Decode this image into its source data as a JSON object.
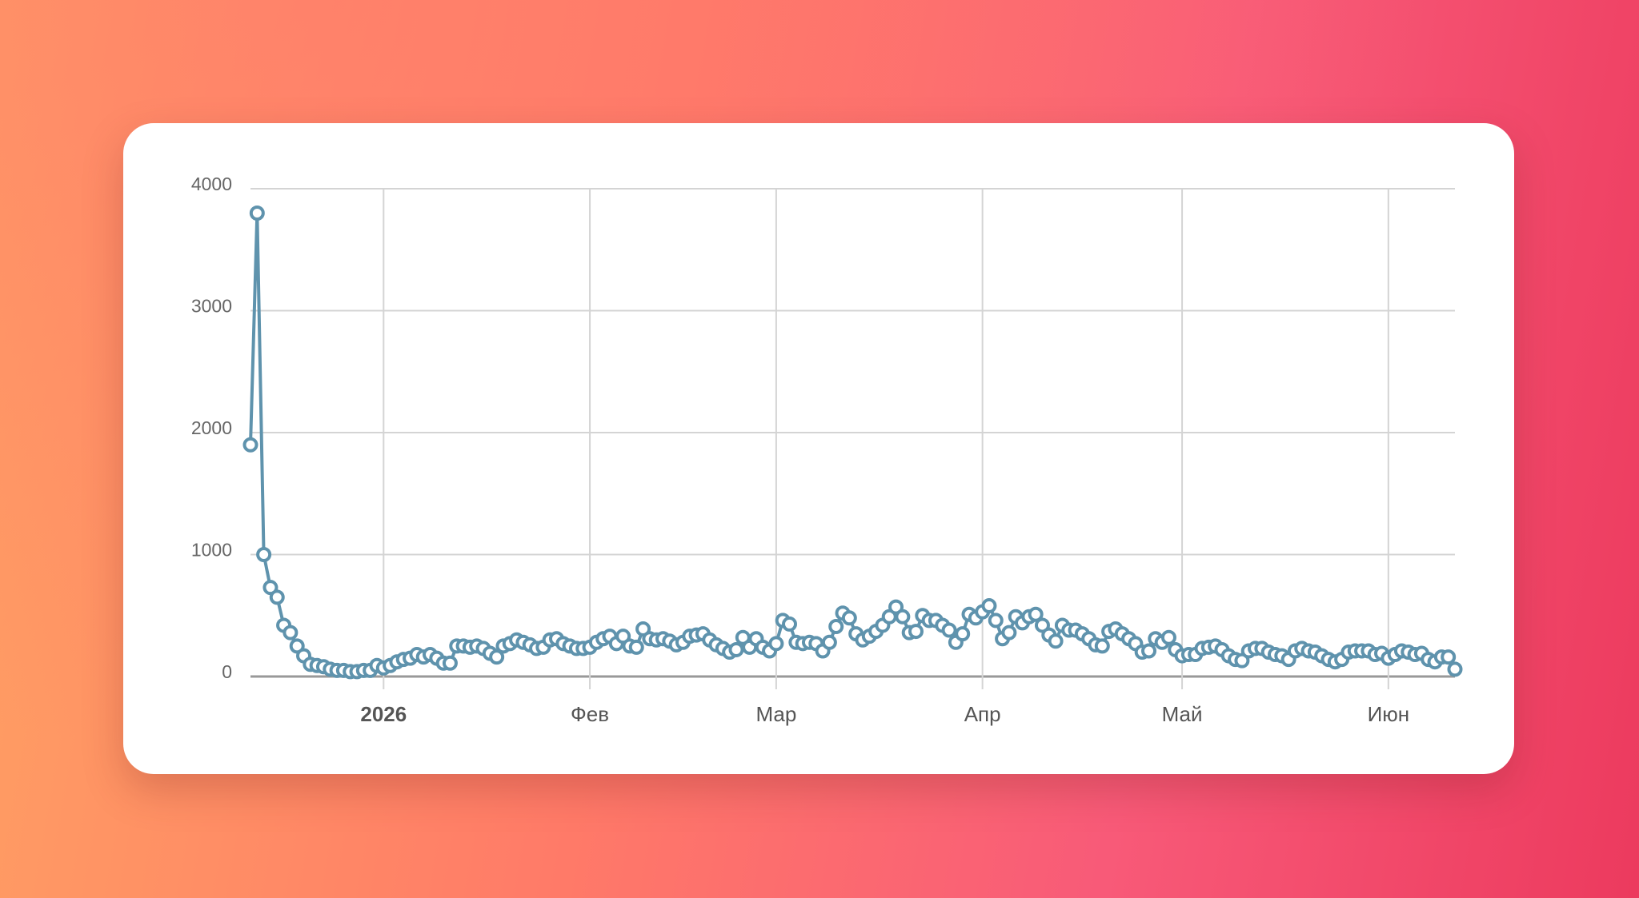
{
  "chart_data": {
    "type": "line",
    "categories": [
      null,
      null,
      null,
      null,
      null,
      null,
      null,
      null,
      null,
      null,
      null,
      null,
      null,
      null,
      null,
      null,
      null,
      null,
      null,
      null,
      "2026",
      null,
      null,
      null,
      null,
      null,
      null,
      null,
      null,
      null,
      null,
      null,
      null,
      null,
      null,
      null,
      null,
      null,
      null,
      null,
      null,
      null,
      null,
      null,
      null,
      null,
      null,
      null,
      null,
      null,
      null,
      "Фев",
      null,
      null,
      null,
      null,
      null,
      null,
      null,
      null,
      null,
      null,
      null,
      null,
      null,
      null,
      null,
      null,
      null,
      null,
      null,
      null,
      null,
      null,
      null,
      null,
      null,
      null,
      null,
      "Мар",
      null,
      null,
      null,
      null,
      null,
      null,
      null,
      null,
      null,
      null,
      null,
      null,
      null,
      null,
      null,
      null,
      null,
      null,
      null,
      null,
      null,
      null,
      null,
      null,
      null,
      null,
      null,
      null,
      null,
      null,
      "Апр",
      null,
      null,
      null,
      null,
      null,
      null,
      null,
      null,
      null,
      null,
      null,
      null,
      null,
      null,
      null,
      null,
      null,
      null,
      null,
      null,
      null,
      null,
      null,
      null,
      null,
      null,
      null,
      null,
      null,
      "Май",
      null,
      null,
      null,
      null,
      null,
      null,
      null,
      null,
      null,
      null,
      null,
      null,
      null,
      null,
      null,
      null,
      null,
      null,
      null,
      null,
      null,
      null,
      null,
      null,
      null,
      null,
      null,
      null,
      null,
      null,
      "Июн",
      null,
      null,
      null,
      null,
      null,
      null,
      null,
      null,
      null,
      null
    ],
    "values": [
      1900,
      3800,
      1000,
      730,
      650,
      420,
      360,
      250,
      170,
      100,
      90,
      80,
      60,
      50,
      50,
      40,
      40,
      50,
      50,
      90,
      70,
      90,
      120,
      140,
      150,
      180,
      160,
      180,
      150,
      110,
      110,
      250,
      250,
      240,
      250,
      230,
      190,
      160,
      250,
      270,
      300,
      280,
      260,
      230,
      240,
      300,
      310,
      270,
      250,
      230,
      230,
      240,
      280,
      310,
      330,
      270,
      330,
      250,
      240,
      390,
      310,
      300,
      310,
      290,
      260,
      280,
      330,
      340,
      350,
      300,
      260,
      230,
      200,
      220,
      320,
      240,
      310,
      240,
      210,
      270,
      460,
      430,
      280,
      270,
      280,
      270,
      210,
      280,
      410,
      520,
      480,
      350,
      300,
      330,
      370,
      420,
      490,
      570,
      490,
      360,
      370,
      500,
      460,
      460,
      420,
      380,
      280,
      350,
      510,
      480,
      530,
      580,
      460,
      310,
      360,
      490,
      440,
      490,
      510,
      420,
      340,
      290,
      420,
      380,
      380,
      350,
      310,
      260,
      250,
      370,
      390,
      350,
      310,
      270,
      200,
      210,
      310,
      280,
      320,
      220,
      170,
      180,
      180,
      230,
      240,
      250,
      220,
      170,
      140,
      130,
      210,
      230,
      230,
      200,
      180,
      170,
      140,
      210,
      230,
      210,
      200,
      170,
      140,
      120,
      140,
      200,
      210,
      210,
      210,
      180,
      190,
      150,
      180,
      210,
      200,
      180,
      190,
      140,
      120,
      160,
      160,
      60
    ],
    "color": "#5f93ad",
    "ylim": [
      0,
      4000
    ],
    "yticks": [
      0,
      1000,
      2000,
      3000,
      4000
    ],
    "grid": true
  }
}
